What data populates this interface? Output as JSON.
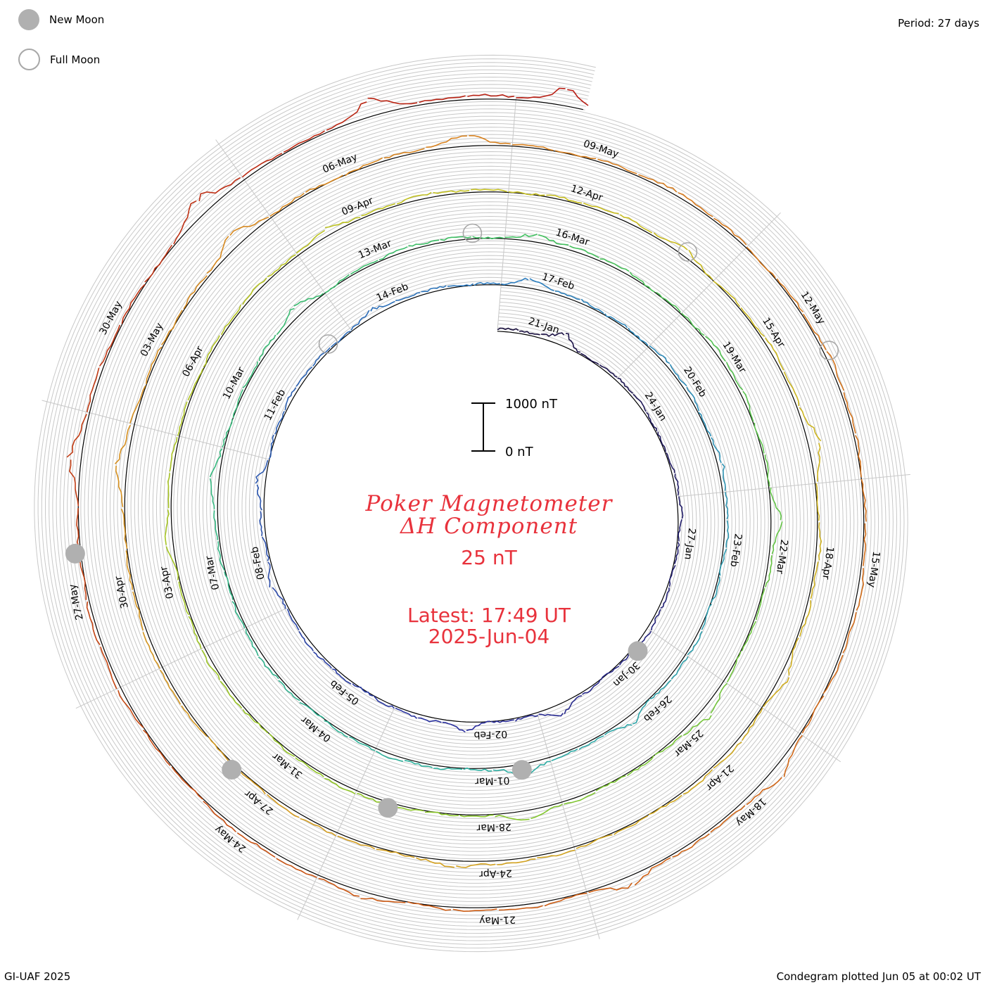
{
  "header": {
    "period_label": "Period: 27 days"
  },
  "legend": {
    "new_moon_label": "New Moon",
    "full_moon_label": "Full Moon"
  },
  "footer": {
    "credit": "GI-UAF 2025",
    "plotted": "Condegram plotted Jun 05 at 00:02 UT"
  },
  "chart_data": {
    "type": "line",
    "subtype": "spiral condegram",
    "title_line1": "Poker Magnetometer",
    "title_line2": "ΔH Component",
    "spacing_label": "25 nT",
    "latest_time": "Latest: 17:49 UT",
    "latest_date": "2025-Jun-04",
    "scale": {
      "top_label": "1000 nT",
      "bottom_label": "0 nT",
      "top_value": 1000,
      "bottom_value": 0
    },
    "period_days": 27,
    "start_date": "2025-01-20",
    "end_date": "2025-06-04",
    "direction": "clockwise",
    "baseline_ring_color": "#000000",
    "grid_ring_color": "#c8c8c8",
    "date_labels": [
      "21-Jan",
      "24-Jan",
      "27-Jan",
      "30-Jan",
      "02-Feb",
      "05-Feb",
      "08-Feb",
      "11-Feb",
      "14-Feb",
      "17-Feb",
      "20-Feb",
      "23-Feb",
      "26-Feb",
      "01-Mar",
      "04-Mar",
      "07-Mar",
      "10-Mar",
      "13-Mar",
      "16-Mar",
      "19-Mar",
      "22-Mar",
      "25-Mar",
      "28-Mar",
      "31-Mar",
      "03-Apr",
      "06-Apr",
      "09-Apr",
      "12-Apr",
      "15-Apr",
      "18-Apr",
      "21-Apr",
      "24-Apr",
      "27-Apr",
      "30-Apr",
      "03-May",
      "06-May",
      "09-May",
      "12-May",
      "15-May",
      "18-May",
      "21-May",
      "24-May",
      "27-May",
      "30-May"
    ],
    "series": [
      {
        "start": "2025-01-20",
        "end": "2025-02-16",
        "color": "#1a0f3c"
      },
      {
        "start": "2025-02-16",
        "end": "2025-03-15",
        "color": "#1e2a9c"
      },
      {
        "start": "2025-03-15",
        "end": "2025-04-11",
        "color": "#2aa6a0"
      },
      {
        "start": "2025-04-11",
        "end": "2025-05-08",
        "color": "#6cc028"
      },
      {
        "start": "2025-05-08",
        "end": "2025-06-04",
        "color": "#c8a214"
      }
    ],
    "color_gradient": [
      "#1a0f3c",
      "#2b2f9e",
      "#2e7ec0",
      "#2eb1a0",
      "#40c060",
      "#8cc828",
      "#c8c020",
      "#d4a020",
      "#d88020",
      "#cc5a14",
      "#b81c14"
    ],
    "new_moons": [
      "2025-01-29",
      "2025-02-28",
      "2025-03-29",
      "2025-04-27",
      "2025-05-27"
    ],
    "full_moons": [
      "2025-02-12",
      "2025-03-14",
      "2025-04-13",
      "2025-05-12"
    ],
    "disturbances": [
      {
        "date": "2025-01-21",
        "peak_nT": 280
      },
      {
        "date": "2025-01-31",
        "peak_nT": 200
      },
      {
        "date": "2025-02-02",
        "peak_nT": 180
      },
      {
        "date": "2025-02-07",
        "peak_nT": 190
      },
      {
        "date": "2025-02-09",
        "peak_nT": 170
      },
      {
        "date": "2025-02-13",
        "peak_nT": 150
      },
      {
        "date": "2025-02-16",
        "peak_nT": 160
      },
      {
        "date": "2025-02-21",
        "peak_nT": 130
      },
      {
        "date": "2025-02-26",
        "peak_nT": 180
      },
      {
        "date": "2025-02-28",
        "peak_nT": 230
      },
      {
        "date": "2025-03-08",
        "peak_nT": 140
      },
      {
        "date": "2025-03-11",
        "peak_nT": 200
      },
      {
        "date": "2025-03-15",
        "peak_nT": 160
      },
      {
        "date": "2025-03-21",
        "peak_nT": 170
      },
      {
        "date": "2025-03-24",
        "peak_nT": 190
      },
      {
        "date": "2025-03-27",
        "peak_nT": 150
      },
      {
        "date": "2025-04-03",
        "peak_nT": 170
      },
      {
        "date": "2025-04-08",
        "peak_nT": 190
      },
      {
        "date": "2025-04-13",
        "peak_nT": 120
      },
      {
        "date": "2025-04-16",
        "peak_nT": 360
      },
      {
        "date": "2025-04-19",
        "peak_nT": 160
      },
      {
        "date": "2025-04-24",
        "peak_nT": 140
      },
      {
        "date": "2025-05-01",
        "peak_nT": 210
      },
      {
        "date": "2025-05-04",
        "peak_nT": 240
      },
      {
        "date": "2025-05-07",
        "peak_nT": 180
      },
      {
        "date": "2025-05-17",
        "peak_nT": 260
      },
      {
        "date": "2025-05-19",
        "peak_nT": 230
      },
      {
        "date": "2025-05-22",
        "peak_nT": 150
      },
      {
        "date": "2025-05-28",
        "peak_nT": 230
      },
      {
        "date": "2025-05-31",
        "peak_nT": 320
      },
      {
        "date": "2025-06-02",
        "peak_nT": 380
      },
      {
        "date": "2025-06-04",
        "peak_nT": 340
      }
    ]
  }
}
